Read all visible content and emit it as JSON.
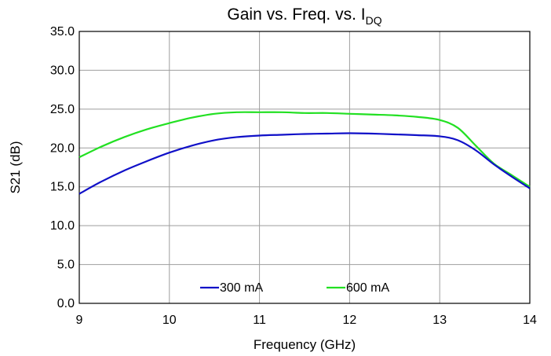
{
  "chart_data": {
    "type": "line",
    "title": "Gain vs. Freq. vs. I",
    "title_subscript": "DQ",
    "xlabel": "Frequency (GHz)",
    "ylabel": "S21 (dB)",
    "xlim": [
      9,
      14
    ],
    "ylim": [
      0,
      35
    ],
    "x_ticks": [
      9,
      10,
      11,
      12,
      13,
      14
    ],
    "x_tick_labels": [
      "9",
      "10",
      "11",
      "12",
      "13",
      "14"
    ],
    "y_ticks": [
      0,
      5,
      10,
      15,
      20,
      25,
      30,
      35
    ],
    "y_tick_labels": [
      "0.0",
      "5.0",
      "10.0",
      "15.0",
      "20.0",
      "25.0",
      "30.0",
      "35.0"
    ],
    "grid": true,
    "legend_position": "bottom-center",
    "series": [
      {
        "name": "300 mA",
        "color": "#1010c8",
        "x": [
          9.0,
          9.25,
          9.5,
          9.75,
          10.0,
          10.25,
          10.5,
          10.75,
          11.0,
          11.25,
          11.5,
          11.75,
          12.0,
          12.25,
          12.5,
          12.75,
          13.0,
          13.2,
          13.4,
          13.6,
          13.8,
          14.0
        ],
        "y": [
          14.1,
          15.7,
          17.1,
          18.3,
          19.4,
          20.3,
          21.0,
          21.4,
          21.6,
          21.7,
          21.8,
          21.85,
          21.9,
          21.85,
          21.75,
          21.65,
          21.5,
          21.0,
          19.7,
          17.9,
          16.3,
          14.8
        ]
      },
      {
        "name": "600 mA",
        "color": "#22e022",
        "x": [
          9.0,
          9.25,
          9.5,
          9.75,
          10.0,
          10.25,
          10.5,
          10.75,
          11.0,
          11.25,
          11.5,
          11.75,
          12.0,
          12.25,
          12.5,
          12.75,
          13.0,
          13.2,
          13.4,
          13.6,
          13.8,
          14.0
        ],
        "y": [
          18.8,
          20.2,
          21.4,
          22.4,
          23.2,
          23.9,
          24.4,
          24.6,
          24.6,
          24.6,
          24.5,
          24.5,
          24.4,
          24.3,
          24.2,
          24.0,
          23.6,
          22.6,
          20.3,
          18.0,
          16.5,
          15.0
        ]
      }
    ]
  }
}
